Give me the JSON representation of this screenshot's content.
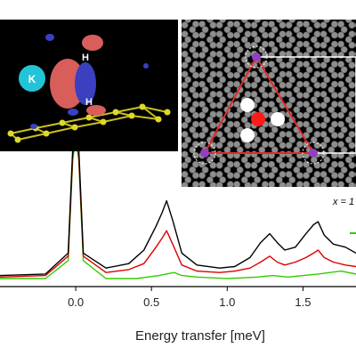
{
  "chart_data": {
    "type": "line",
    "xlabel": "Energy transfer [meV]",
    "ylabel": "",
    "xlim": [
      -0.5,
      1.85
    ],
    "ylim": [
      0,
      1.0
    ],
    "x_ticks": [
      0.0,
      0.5,
      1.0,
      1.5
    ],
    "x_tick_labels": [
      "0.0",
      "0.5",
      "1.0",
      "1.5"
    ],
    "legend_partial": "x = 1",
    "series": [
      {
        "color": "#000000",
        "x": [
          -0.5,
          -0.2,
          -0.05,
          -0.02,
          0.0,
          0.02,
          0.05,
          0.2,
          0.35,
          0.45,
          0.53,
          0.57,
          0.6,
          0.64,
          0.7,
          0.8,
          0.95,
          1.05,
          1.15,
          1.22,
          1.28,
          1.33,
          1.38,
          1.45,
          1.52,
          1.57,
          1.6,
          1.64,
          1.7,
          1.78,
          1.85
        ],
        "y": [
          0.05,
          0.06,
          0.2,
          0.9,
          1.0,
          0.9,
          0.2,
          0.1,
          0.13,
          0.22,
          0.38,
          0.47,
          0.55,
          0.42,
          0.2,
          0.12,
          0.1,
          0.11,
          0.17,
          0.27,
          0.33,
          0.27,
          0.22,
          0.24,
          0.33,
          0.39,
          0.41,
          0.32,
          0.26,
          0.24,
          0.2
        ]
      },
      {
        "color": "#dd0000",
        "x": [
          -0.5,
          -0.2,
          -0.05,
          -0.02,
          0.0,
          0.02,
          0.05,
          0.2,
          0.35,
          0.45,
          0.53,
          0.57,
          0.6,
          0.64,
          0.7,
          0.8,
          0.95,
          1.05,
          1.15,
          1.22,
          1.28,
          1.33,
          1.38,
          1.45,
          1.52,
          1.57,
          1.6,
          1.64,
          1.7,
          1.78,
          1.85
        ],
        "y": [
          0.04,
          0.05,
          0.18,
          0.85,
          0.98,
          0.85,
          0.18,
          0.07,
          0.09,
          0.13,
          0.24,
          0.3,
          0.35,
          0.26,
          0.12,
          0.08,
          0.07,
          0.08,
          0.1,
          0.14,
          0.18,
          0.14,
          0.12,
          0.14,
          0.17,
          0.2,
          0.22,
          0.17,
          0.14,
          0.12,
          0.11
        ]
      },
      {
        "color": "#33cc00",
        "x": [
          -0.5,
          -0.2,
          -0.05,
          -0.02,
          0.0,
          0.02,
          0.05,
          0.2,
          0.4,
          0.55,
          0.65,
          0.7,
          0.8,
          1.0,
          1.2,
          1.3,
          1.4,
          1.6,
          1.75,
          1.85
        ],
        "y": [
          0.03,
          0.03,
          0.15,
          0.82,
          0.97,
          0.82,
          0.15,
          0.03,
          0.03,
          0.05,
          0.07,
          0.05,
          0.04,
          0.03,
          0.04,
          0.05,
          0.04,
          0.06,
          0.08,
          0.06
        ]
      }
    ]
  },
  "inset_left": {
    "label_k": "K",
    "label_h_top": "H",
    "label_h_bottom": "H",
    "colors": {
      "background": "#000000",
      "potassium": "#22c4d8",
      "lobe_positive": "#e06a68",
      "lobe_negative": "#4046c8",
      "graphene": "#d8d020"
    }
  },
  "inset_right": {
    "colors": {
      "background": "#000000",
      "atoms": "#9a9a9a",
      "triangle": "#e02a2a",
      "cell": "#ffffff",
      "site": "#9040c0",
      "center_dot": "#ff1a1a",
      "white_dots": "#ffffff"
    }
  }
}
